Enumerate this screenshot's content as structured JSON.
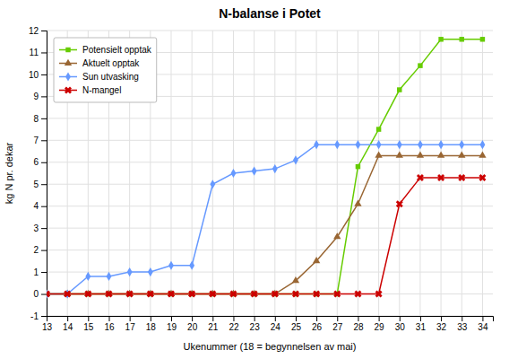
{
  "chart_data": {
    "type": "line",
    "title": "N-balanse i Potet",
    "xlabel": "Ukenummer (18 = begynnelsen av mai)",
    "ylabel": "kg N pr. dekar",
    "x": [
      13,
      14,
      15,
      16,
      17,
      18,
      19,
      20,
      21,
      22,
      23,
      24,
      25,
      26,
      27,
      28,
      29,
      30,
      31,
      32,
      33,
      34
    ],
    "series": [
      {
        "name": "Potensielt opptak",
        "color": "#66cc00",
        "marker": "square",
        "values": [
          0,
          0,
          0,
          0,
          0,
          0,
          0,
          0,
          0,
          0,
          0,
          0,
          0,
          0,
          0,
          5.8,
          7.5,
          9.3,
          10.4,
          11.6,
          11.6,
          11.6
        ]
      },
      {
        "name": "Aktuelt opptak",
        "color": "#996633",
        "marker": "triangle",
        "values": [
          0,
          0,
          0,
          0,
          0,
          0,
          0,
          0,
          0,
          0,
          0,
          0,
          0.6,
          1.5,
          2.6,
          4.1,
          6.3,
          6.3,
          6.3,
          6.3,
          6.3,
          6.3
        ]
      },
      {
        "name": "Sun utvasking",
        "color": "#6699ff",
        "marker": "diamond",
        "values": [
          0,
          0,
          0.8,
          0.8,
          1.0,
          1.0,
          1.3,
          1.3,
          5.0,
          5.5,
          5.6,
          5.7,
          6.1,
          6.8,
          6.8,
          6.8,
          6.8,
          6.8,
          6.8,
          6.8,
          6.8,
          6.8
        ]
      },
      {
        "name": "N-mangel",
        "color": "#cc0000",
        "marker": "x",
        "values": [
          0,
          0,
          0,
          0,
          0,
          0,
          0,
          0,
          0,
          0,
          0,
          0,
          0,
          0,
          0,
          0,
          0,
          4.1,
          5.3,
          5.3,
          5.3,
          5.3
        ]
      }
    ],
    "xlim": [
      13,
      34.5
    ],
    "ylim": [
      -1,
      12
    ],
    "xticks": [
      13,
      14,
      15,
      16,
      17,
      18,
      19,
      20,
      21,
      22,
      23,
      24,
      25,
      26,
      27,
      28,
      29,
      30,
      31,
      32,
      33,
      34
    ],
    "yticks": [
      -1,
      0,
      1,
      2,
      3,
      4,
      5,
      6,
      7,
      8,
      9,
      10,
      11,
      12
    ],
    "grid": true,
    "legend": "upper left"
  }
}
